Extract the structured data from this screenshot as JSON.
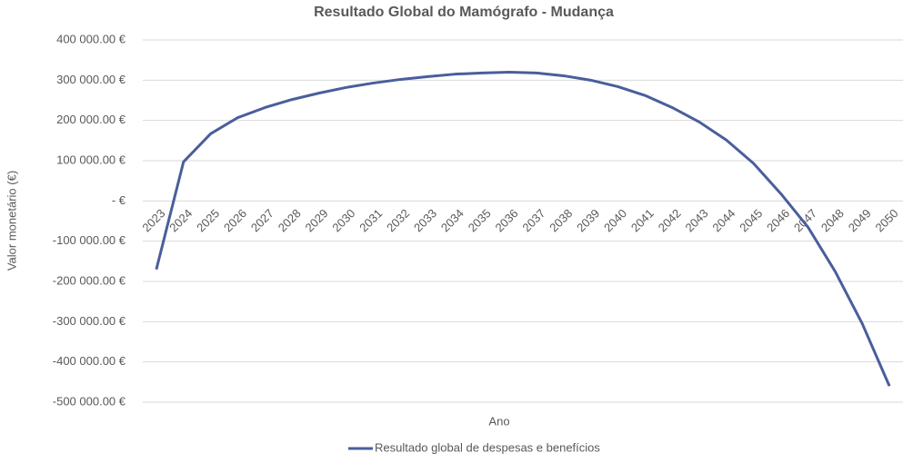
{
  "chart_data": {
    "type": "line",
    "title": "Resultado Global do Mamógrafo - Mudança",
    "x_label": "Ano",
    "y_label": "Valor monetário (€)",
    "categories": [
      "2023",
      "2024",
      "2025",
      "2026",
      "2027",
      "2028",
      "2029",
      "2030",
      "2031",
      "2032",
      "2033",
      "2034",
      "2035",
      "2036",
      "2037",
      "2038",
      "2039",
      "2040",
      "2041",
      "2042",
      "2043",
      "2044",
      "2045",
      "2046",
      "2047",
      "2048",
      "2049",
      "2050"
    ],
    "series": [
      {
        "name": "Resultado global de despesas e benefícios",
        "color": "#4a5e9c",
        "values": [
          -170000,
          97000,
          167000,
          207000,
          232000,
          252000,
          268000,
          282000,
          293000,
          302000,
          309000,
          315000,
          318000,
          320000,
          318000,
          311000,
          300000,
          284000,
          262000,
          232000,
          196000,
          151000,
          93000,
          18000,
          -65000,
          -175000,
          -305000,
          -460000
        ]
      }
    ],
    "ylim": [
      -500000,
      400000
    ],
    "yticks": [
      {
        "value": -500000,
        "label": "-500 000.00 €"
      },
      {
        "value": -400000,
        "label": "-400 000.00 €"
      },
      {
        "value": -300000,
        "label": "-300 000.00 €"
      },
      {
        "value": -200000,
        "label": "-200 000.00 €"
      },
      {
        "value": -100000,
        "label": "-100 000.00 €"
      },
      {
        "value": 0,
        "label": "-  €"
      },
      {
        "value": 100000,
        "label": "100 000.00 €"
      },
      {
        "value": 200000,
        "label": "200 000.00 €"
      },
      {
        "value": 300000,
        "label": "300 000.00 €"
      },
      {
        "value": 400000,
        "label": "400 000.00 €"
      }
    ],
    "grid": true,
    "legend": "bottom"
  }
}
